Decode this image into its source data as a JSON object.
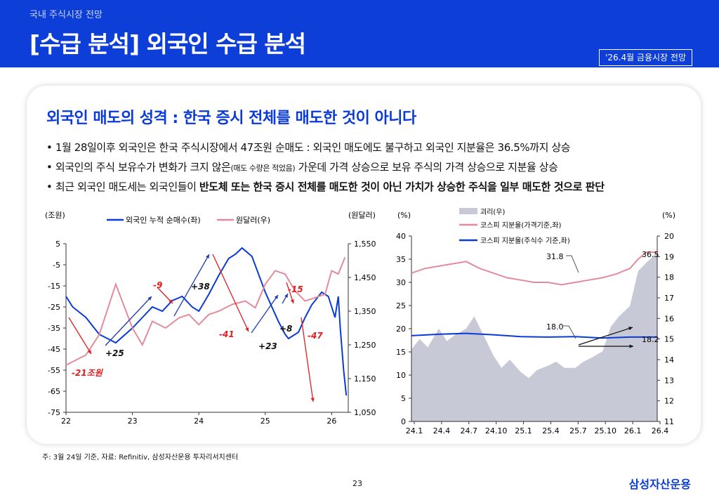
{
  "header": {
    "breadcrumb": "국내 주식시장 전망",
    "title": "[수급 분석] 외국인 수급 분석",
    "badge": "'26.4월 금융시장 전망"
  },
  "card": {
    "headline": "외국인 매도의 성격 : 한국 증시 전체를 매도한 것이 아니다",
    "bullets": [
      {
        "text": "• 1월 28일이후 외국인은 한국 주식시장에서 47조원 순매도 : 외국인 매도에도 불구하고 외국인 지분율은 36.5%까지 상승"
      },
      {
        "pre": "• 외국인의 주식 보유수가 변화가 크지 않은",
        "small": "(매도 수량은 적었음)",
        "post": " 가운데 가격 상승으로 보유 주식의 가격 상승으로 지분율 상승"
      },
      {
        "pre": "• 최근 외국인 매도세는 외국인들이 ",
        "bold": "반도체 또는 한국 증시 전체를 매도한 것이 아닌 가치가 상승한 주식을 일부 매도한 것으로 판단"
      }
    ]
  },
  "colors": {
    "brand": "#0d3ed8",
    "blue_series": "#0b3bd6",
    "pink_series": "#e48b9a",
    "gray_area": "#c7c9d6",
    "red_arrow": "#e01e1e"
  },
  "chart_data": [
    {
      "type": "line",
      "left_unit": "(조원)",
      "right_unit": "(원달러)",
      "x_ticks": [
        "22",
        "23",
        "24",
        "25",
        "26"
      ],
      "y_left_ticks": [
        "5",
        "-5",
        "-15",
        "-25",
        "-35",
        "-45",
        "-55",
        "-65",
        "-75"
      ],
      "y_right_ticks": [
        "1,550",
        "1,450",
        "1,350",
        "1,250",
        "1,150",
        "1,050"
      ],
      "ylim_left": [
        -75,
        5
      ],
      "ylim_right": [
        1050,
        1550
      ],
      "series": [
        {
          "name": "외국인 누적 순매수(좌)",
          "axis": "left",
          "color": "#0b3bd6",
          "x": [
            22.0,
            22.1,
            22.3,
            22.5,
            22.75,
            23.0,
            23.15,
            23.3,
            23.45,
            23.6,
            23.75,
            23.9,
            24.0,
            24.15,
            24.3,
            24.45,
            24.55,
            24.65,
            24.8,
            25.0,
            25.1,
            25.2,
            25.3,
            25.35,
            25.5,
            25.6,
            25.7,
            25.85,
            25.95,
            26.0,
            26.05,
            26.1,
            26.13,
            26.18,
            26.22
          ],
          "y": [
            -20,
            -25,
            -30,
            -38,
            -42,
            -35,
            -30,
            -25,
            -27,
            -22,
            -20,
            -25,
            -27,
            -19,
            -10,
            -2,
            0,
            3,
            -1,
            -18,
            -25,
            -32,
            -38,
            -40,
            -37,
            -30,
            -24,
            -18,
            -20,
            -25,
            -30,
            -20,
            -35,
            -55,
            -67
          ]
        },
        {
          "name": "원달러(우)",
          "axis": "right",
          "color": "#e48b9a",
          "x": [
            22.0,
            22.1,
            22.3,
            22.5,
            22.75,
            23.0,
            23.15,
            23.3,
            23.5,
            23.7,
            23.85,
            24.0,
            24.15,
            24.3,
            24.5,
            24.7,
            24.85,
            25.0,
            25.15,
            25.3,
            25.45,
            25.6,
            25.75,
            25.9,
            26.0,
            26.1,
            26.2
          ],
          "y": [
            1190,
            1200,
            1220,
            1280,
            1430,
            1300,
            1250,
            1320,
            1300,
            1330,
            1340,
            1310,
            1340,
            1350,
            1370,
            1380,
            1360,
            1430,
            1470,
            1460,
            1410,
            1380,
            1390,
            1400,
            1470,
            1460,
            1510
          ]
        }
      ],
      "annotations": [
        {
          "text": "-21조원",
          "color": "#e01e1e"
        },
        {
          "text": "+25",
          "color": "#111"
        },
        {
          "text": "-9",
          "color": "#e01e1e"
        },
        {
          "text": "+38",
          "color": "#111"
        },
        {
          "text": "-41",
          "color": "#e01e1e"
        },
        {
          "text": "+23",
          "color": "#111"
        },
        {
          "text": "+8",
          "color": "#111"
        },
        {
          "text": "-15",
          "color": "#e01e1e"
        },
        {
          "text": "-47",
          "color": "#e01e1e"
        }
      ]
    },
    {
      "type": "area",
      "left_unit": "(%)",
      "right_unit": "(%)",
      "x_ticks": [
        "24.1",
        "24.4",
        "24.7",
        "24.10",
        "25.1",
        "25.4",
        "25.7",
        "25.10",
        "26.1",
        "26.4"
      ],
      "y_left_ticks": [
        "40",
        "35",
        "30",
        "25",
        "20",
        "15",
        "10",
        "5",
        "0"
      ],
      "y_right_ticks": [
        "20",
        "19",
        "18",
        "17",
        "16",
        "15",
        "14",
        "13",
        "12",
        "11"
      ],
      "ylim_left": [
        0,
        40
      ],
      "ylim_right": [
        11,
        20
      ],
      "series": [
        {
          "name": "괴리(우)",
          "axis": "right",
          "color": "#c7c9d6",
          "x": [
            0,
            0.3,
            0.6,
            1.0,
            1.3,
            1.6,
            2.0,
            2.3,
            2.6,
            3.0,
            3.3,
            3.6,
            4.0,
            4.3,
            4.6,
            5.0,
            5.3,
            5.6,
            6.0,
            6.3,
            6.6,
            7.0,
            7.3,
            7.6,
            8.0,
            8.3,
            8.6,
            9.0
          ],
          "y": [
            14.5,
            15.0,
            14.6,
            15.5,
            14.9,
            15.2,
            15.5,
            16.1,
            15.3,
            14.2,
            13.6,
            14.0,
            13.4,
            13.1,
            13.5,
            13.7,
            13.9,
            13.6,
            13.6,
            13.9,
            14.1,
            14.4,
            15.6,
            16.1,
            16.6,
            18.3,
            18.7,
            19.2
          ]
        },
        {
          "name": "코스피 지분율(가격기준,좌)",
          "axis": "left",
          "color": "#e48b9a",
          "x": [
            0,
            0.5,
            1.0,
            1.5,
            2.0,
            2.5,
            3.0,
            3.5,
            4.0,
            4.5,
            5.0,
            5.5,
            6.0,
            6.5,
            7.0,
            7.5,
            8.0,
            8.3,
            8.6,
            9.0
          ],
          "y": [
            32,
            33,
            33.5,
            34,
            34.5,
            33,
            32,
            31,
            30.5,
            30,
            30,
            29.5,
            30,
            30.5,
            31,
            31.8,
            33,
            35,
            36.5,
            36.5
          ]
        },
        {
          "name": "코스피 지분율(주식수 기준,좌)",
          "axis": "left",
          "color": "#0b3bd6",
          "x": [
            0,
            1.0,
            2.0,
            3.0,
            4.0,
            5.0,
            6.0,
            7.0,
            8.0,
            9.0
          ],
          "y": [
            18.5,
            18.8,
            19.0,
            18.7,
            18.3,
            18.2,
            18.3,
            18.0,
            18.2,
            18.2
          ]
        }
      ],
      "annotations": [
        {
          "text": "31.8"
        },
        {
          "text": "36.5"
        },
        {
          "text": "18.0"
        },
        {
          "text": "18.2"
        }
      ]
    }
  ],
  "footer": {
    "note": "주: 3월 24일 기준, 자료: Refinitiv, 삼성자산운용 투자리서치센터",
    "page": "23",
    "logo": "삼성자산운용"
  }
}
